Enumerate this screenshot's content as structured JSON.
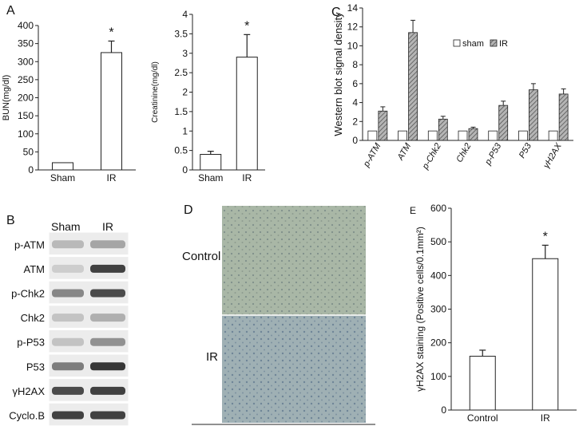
{
  "panel_letters": [
    "A",
    "B",
    "C",
    "D",
    "E"
  ],
  "chart_data": [
    {
      "panel": "A-left",
      "type": "bar",
      "categories": [
        "Sham",
        "IR"
      ],
      "values": [
        20,
        325
      ],
      "errors": [
        0,
        32
      ],
      "significance": [
        "",
        "*"
      ],
      "ylabel": "BUN(mg/dl)",
      "ylim": [
        0,
        400
      ],
      "yticks": [
        0,
        50,
        100,
        150,
        200,
        250,
        300,
        350,
        400
      ]
    },
    {
      "panel": "A-right",
      "type": "bar",
      "categories": [
        "Sham",
        "IR"
      ],
      "values": [
        0.4,
        2.9
      ],
      "errors": [
        0.08,
        0.58
      ],
      "significance": [
        "",
        "*"
      ],
      "ylabel": "Creatinine(mg/dl)",
      "ylim": [
        0,
        4
      ],
      "yticks": [
        "0",
        "0.5",
        "1",
        "1.5",
        "2",
        "2.5",
        "3",
        "3.5",
        "4"
      ]
    },
    {
      "panel": "C",
      "type": "bar",
      "categories": [
        "p-ATM",
        "ATM",
        "p-Chk2",
        "Chk2",
        "p-P53",
        "P53",
        "γH2AX"
      ],
      "series": [
        {
          "name": "sham",
          "values": [
            1,
            1,
            1,
            1,
            1,
            1,
            1
          ],
          "errors": [
            0,
            0,
            0,
            0,
            0,
            0,
            0
          ],
          "color": "#ffffff"
        },
        {
          "name": "IR",
          "values": [
            3.1,
            11.4,
            2.25,
            1.25,
            3.7,
            5.35,
            4.9
          ],
          "errors": [
            0.45,
            1.3,
            0.3,
            0.15,
            0.45,
            0.65,
            0.55
          ],
          "color": "#9a9a9a"
        }
      ],
      "ylabel": "Western blot signal density",
      "ylim": [
        0,
        14
      ],
      "yticks": [
        0,
        2,
        4,
        6,
        8,
        10,
        12,
        14
      ],
      "legend": "top-right"
    },
    {
      "panel": "E",
      "type": "bar",
      "categories": [
        "Control",
        "IR"
      ],
      "values": [
        160,
        450
      ],
      "errors": [
        18,
        40
      ],
      "significance": [
        "",
        "*"
      ],
      "ylabel": "γH2AX staining (Positive cells/0.1mm²)",
      "ylim": [
        0,
        600
      ],
      "yticks": [
        0,
        100,
        200,
        300,
        400,
        500,
        600
      ]
    }
  ],
  "western_blot": {
    "columns": [
      "Sham",
      "IR"
    ],
    "rows": [
      {
        "label": "p-ATM",
        "sham": 0.25,
        "ir": 0.35
      },
      {
        "label": "ATM",
        "sham": 0.15,
        "ir": 0.85
      },
      {
        "label": "p-Chk2",
        "sham": 0.5,
        "ir": 0.8
      },
      {
        "label": "Chk2",
        "sham": 0.2,
        "ir": 0.3
      },
      {
        "label": "p-P53",
        "sham": 0.2,
        "ir": 0.45
      },
      {
        "label": "P53",
        "sham": 0.55,
        "ir": 0.9
      },
      {
        "label": "γH2AX",
        "sham": 0.8,
        "ir": 0.85
      },
      {
        "label": "Cyclo.B",
        "sham": 0.85,
        "ir": 0.85
      }
    ]
  },
  "histology": {
    "labels": [
      "Control",
      "IR"
    ]
  }
}
